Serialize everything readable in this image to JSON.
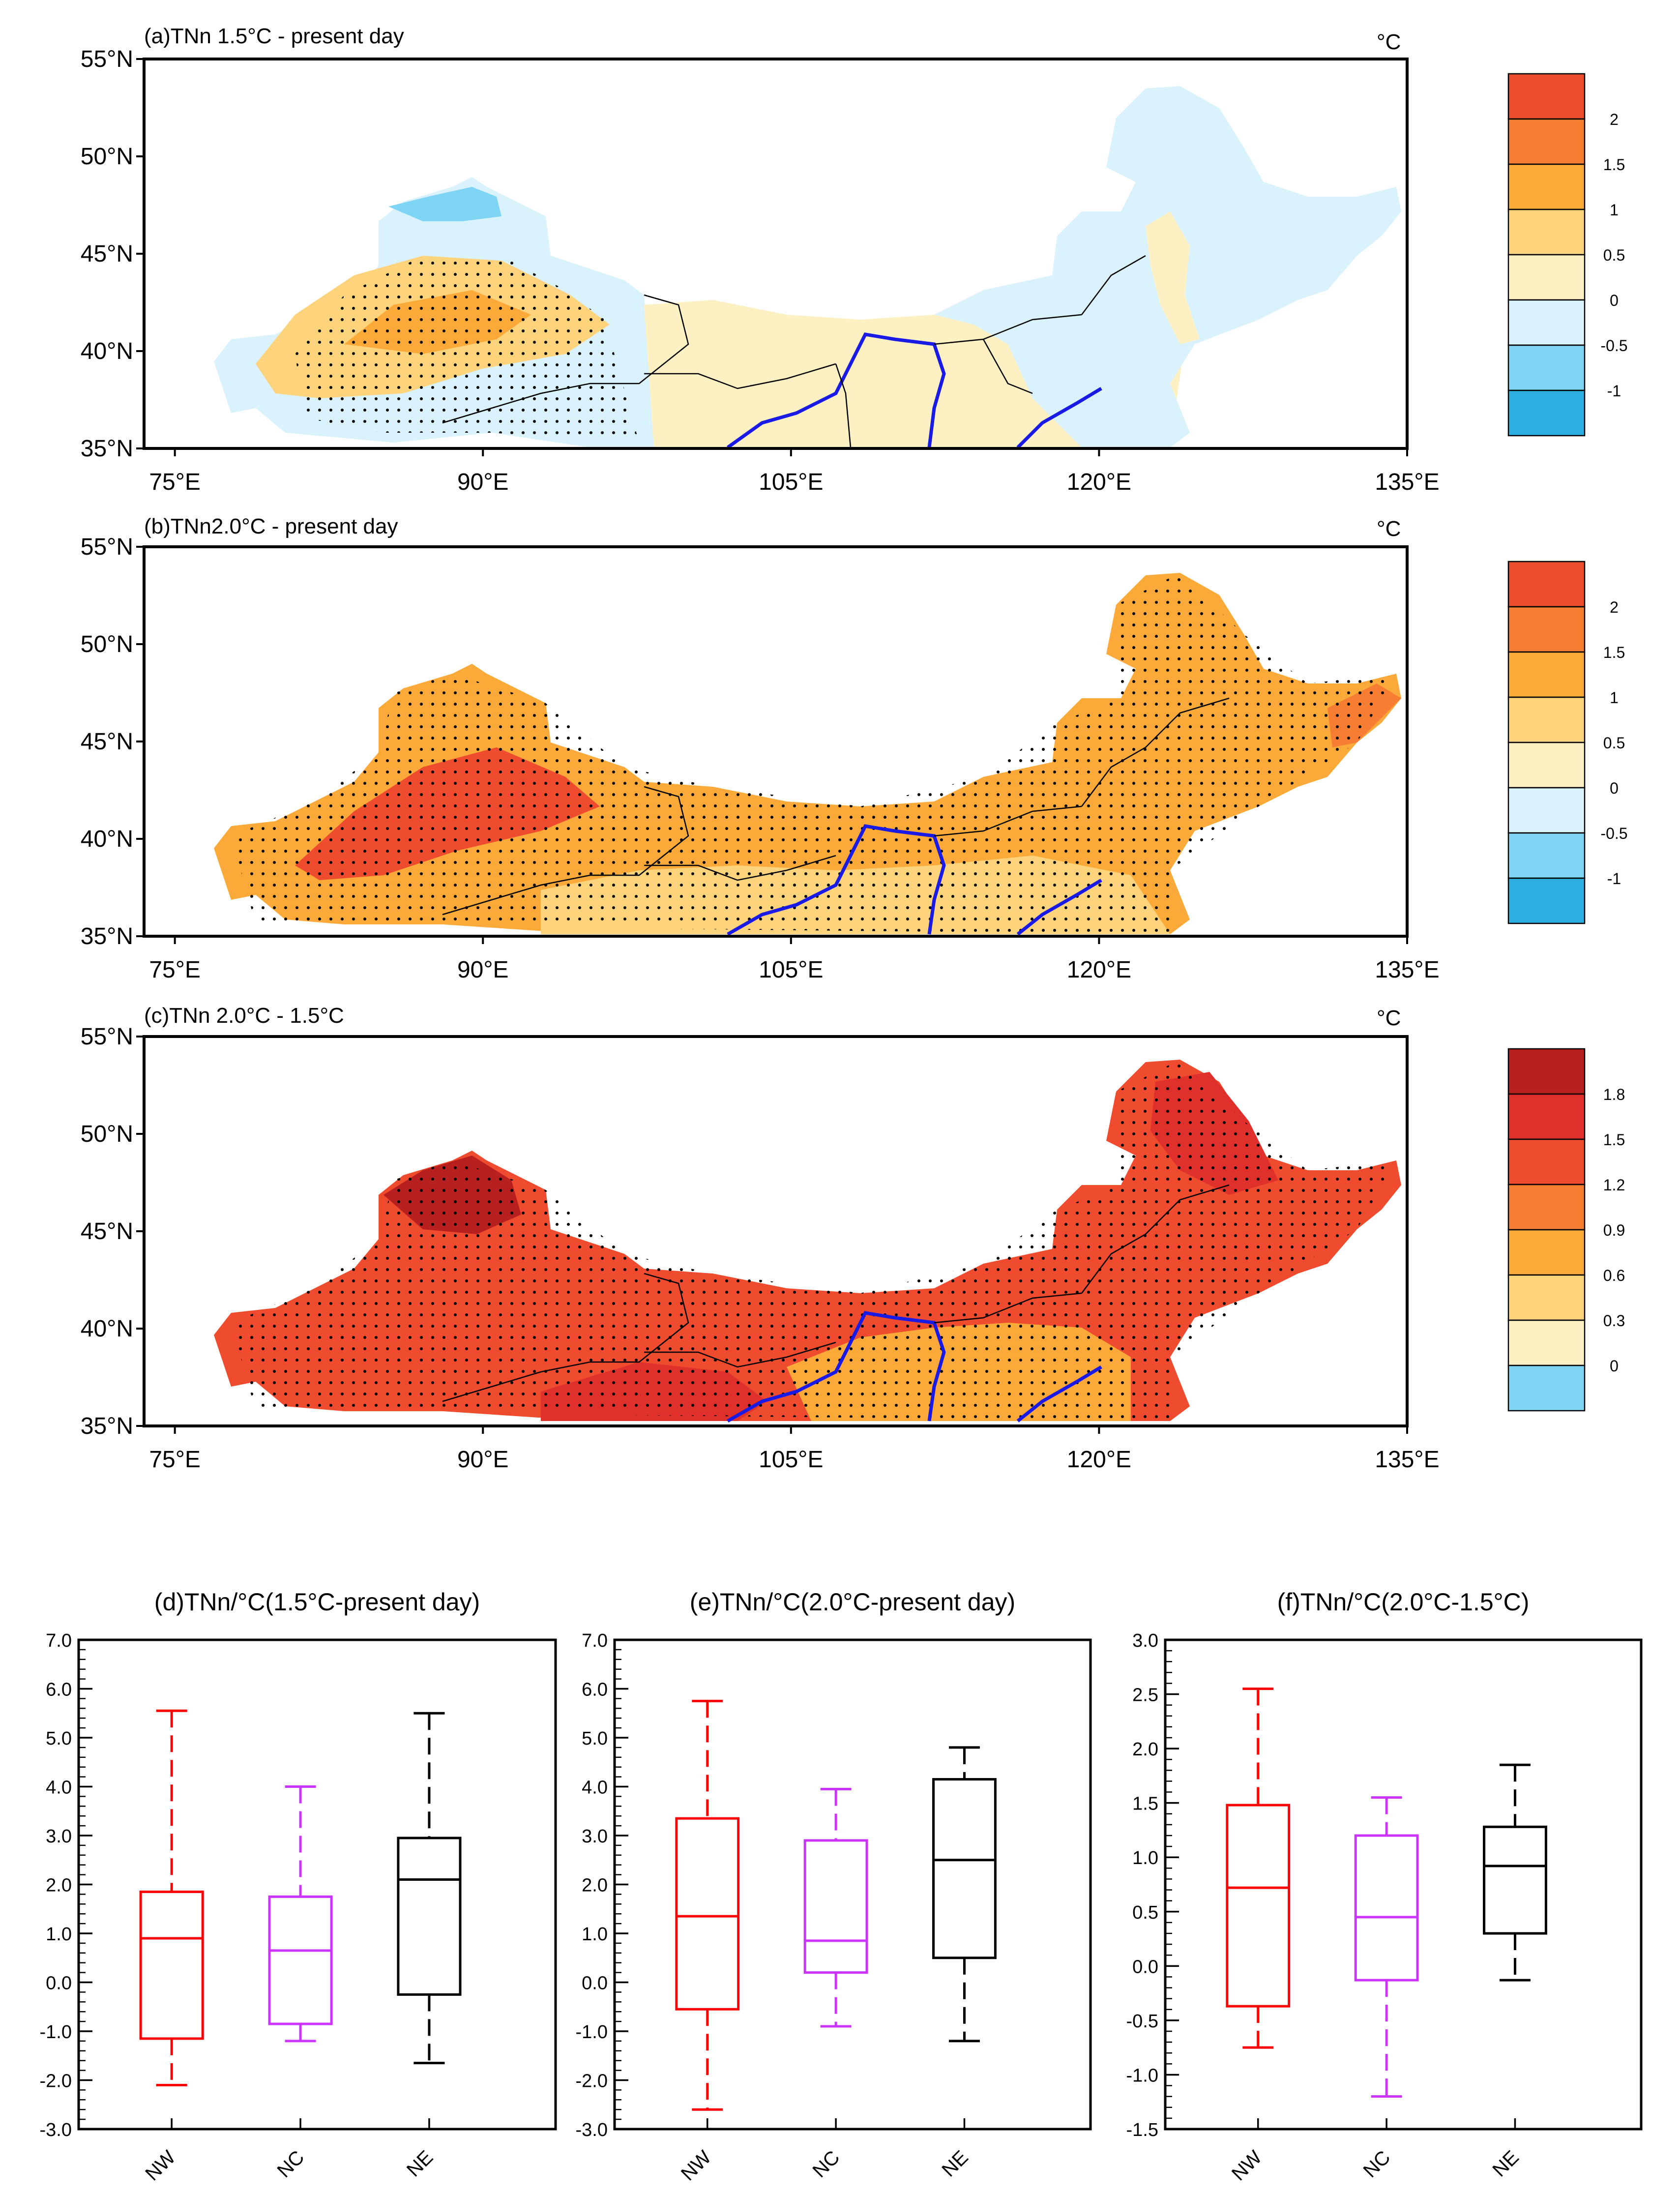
{
  "chart_data": [
    {
      "type": "map",
      "panel": "a",
      "title": "(a)TNn 1.5°C - present day",
      "unit": "°C",
      "lat_ticks": [
        "55°N",
        "50°N",
        "45°N",
        "40°N",
        "35°N"
      ],
      "lat_values": [
        55,
        50,
        45,
        40,
        35
      ],
      "lon_ticks": [
        "75°E",
        "90°E",
        "105°E",
        "120°E",
        "135°E"
      ],
      "lon_values": [
        75,
        90,
        105,
        120,
        135
      ],
      "lon_range": [
        73.5,
        135
      ],
      "lat_range": [
        35,
        55
      ],
      "legend_labels": [
        "2",
        "1.5",
        "1",
        "0.5",
        "0",
        "-0.5",
        "-1"
      ],
      "legend_colors": [
        "#ef4b2e",
        "#f77d32",
        "#fbaa3a",
        "#fdd37c",
        "#fdf1c4",
        "#daf2fc",
        "#7dd4f3",
        "#2eaee0"
      ]
    },
    {
      "type": "map",
      "panel": "b",
      "title": "(b)TNn2.0°C - present day",
      "unit": "°C",
      "lat_ticks": [
        "55°N",
        "50°N",
        "45°N",
        "40°N",
        "35°N"
      ],
      "lat_values": [
        55,
        50,
        45,
        40,
        35
      ],
      "lon_ticks": [
        "75°E",
        "90°E",
        "105°E",
        "120°E",
        "135°E"
      ],
      "lon_values": [
        75,
        90,
        105,
        120,
        135
      ],
      "lon_range": [
        73.5,
        135
      ],
      "lat_range": [
        35,
        55
      ],
      "legend_labels": [
        "2",
        "1.5",
        "1",
        "0.5",
        "0",
        "-0.5",
        "-1"
      ],
      "legend_colors": [
        "#ef4b2e",
        "#f77d32",
        "#fbaa3a",
        "#fdd37c",
        "#fdf1c4",
        "#daf2fc",
        "#7dd4f3",
        "#2eaee0"
      ]
    },
    {
      "type": "map",
      "panel": "c",
      "title": "(c)TNn 2.0°C - 1.5°C",
      "unit": "°C",
      "lat_ticks": [
        "55°N",
        "50°N",
        "45°N",
        "40°N",
        "35°N"
      ],
      "lat_values": [
        55,
        50,
        45,
        40,
        35
      ],
      "lon_ticks": [
        "75°E",
        "90°E",
        "105°E",
        "120°E",
        "135°E"
      ],
      "lon_values": [
        75,
        90,
        105,
        120,
        135
      ],
      "lon_range": [
        73.5,
        135
      ],
      "lat_range": [
        35,
        55
      ],
      "legend_labels": [
        "1.8",
        "1.5",
        "1.2",
        "0.9",
        "0.6",
        "0.3",
        "0"
      ],
      "legend_colors": [
        "#b8201f",
        "#e0302b",
        "#ef4b2e",
        "#f77d32",
        "#fbaa3a",
        "#fdd37c",
        "#fdf1c4",
        "#7dd4f3"
      ]
    },
    {
      "type": "box",
      "panel": "d",
      "title": "(d)TNn/°C(1.5°C-present day)",
      "categories": [
        "NW",
        "NC",
        "NE"
      ],
      "colors": [
        "#ff0000",
        "#cc33ff",
        "#000000"
      ],
      "ylim": [
        -3.0,
        7.0
      ],
      "yticks": [
        "7.0",
        "6.0",
        "5.0",
        "4.0",
        "3.0",
        "2.0",
        "1.0",
        "0.0",
        "-1.0",
        "-2.0",
        "-3.0"
      ],
      "ytick_values": [
        7,
        6,
        5,
        4,
        3,
        2,
        1,
        0,
        -1,
        -2,
        -3
      ],
      "boxes": [
        {
          "name": "NW",
          "min": -2.1,
          "q1": -1.15,
          "median": 0.9,
          "q3": 1.85,
          "max": 5.55
        },
        {
          "name": "NC",
          "min": -1.2,
          "q1": -0.85,
          "median": 0.65,
          "q3": 1.75,
          "max": 4.0
        },
        {
          "name": "NE",
          "min": -1.65,
          "q1": -0.25,
          "median": 2.1,
          "q3": 2.95,
          "max": 5.5
        }
      ]
    },
    {
      "type": "box",
      "panel": "e",
      "title": "(e)TNn/°C(2.0°C-present day)",
      "categories": [
        "NW",
        "NC",
        "NE"
      ],
      "colors": [
        "#ff0000",
        "#cc33ff",
        "#000000"
      ],
      "ylim": [
        -3.0,
        7.0
      ],
      "yticks": [
        "7.0",
        "6.0",
        "5.0",
        "4.0",
        "3.0",
        "2.0",
        "1.0",
        "0.0",
        "-1.0",
        "-2.0",
        "-3.0"
      ],
      "ytick_values": [
        7,
        6,
        5,
        4,
        3,
        2,
        1,
        0,
        -1,
        -2,
        -3
      ],
      "boxes": [
        {
          "name": "NW",
          "min": -2.6,
          "q1": -0.55,
          "median": 1.35,
          "q3": 3.35,
          "max": 5.75
        },
        {
          "name": "NC",
          "min": -0.9,
          "q1": 0.2,
          "median": 0.85,
          "q3": 2.9,
          "max": 3.95
        },
        {
          "name": "NE",
          "min": -1.2,
          "q1": 0.5,
          "median": 2.5,
          "q3": 4.15,
          "max": 4.8
        }
      ]
    },
    {
      "type": "box",
      "panel": "f",
      "title": "(f)TNn/°C(2.0°C-1.5°C)",
      "categories": [
        "NW",
        "NC",
        "NE"
      ],
      "colors": [
        "#ff0000",
        "#cc33ff",
        "#000000"
      ],
      "ylim": [
        -1.5,
        3.0
      ],
      "yticks": [
        "3.0",
        "2.5",
        "2.0",
        "1.5",
        "1.0",
        "0.5",
        "0.0",
        "-0.5",
        "-1.0",
        "-1.5"
      ],
      "ytick_values": [
        3,
        2.5,
        2,
        1.5,
        1,
        0.5,
        0,
        -0.5,
        -1,
        -1.5
      ],
      "boxes": [
        {
          "name": "NW",
          "min": -0.75,
          "q1": -0.37,
          "median": 0.72,
          "q3": 1.48,
          "max": 2.55
        },
        {
          "name": "NC",
          "min": -1.2,
          "q1": -0.13,
          "median": 0.45,
          "q3": 1.2,
          "max": 1.55
        },
        {
          "name": "NE",
          "min": -0.13,
          "q1": 0.3,
          "median": 0.92,
          "q3": 1.28,
          "max": 1.85
        }
      ]
    }
  ]
}
